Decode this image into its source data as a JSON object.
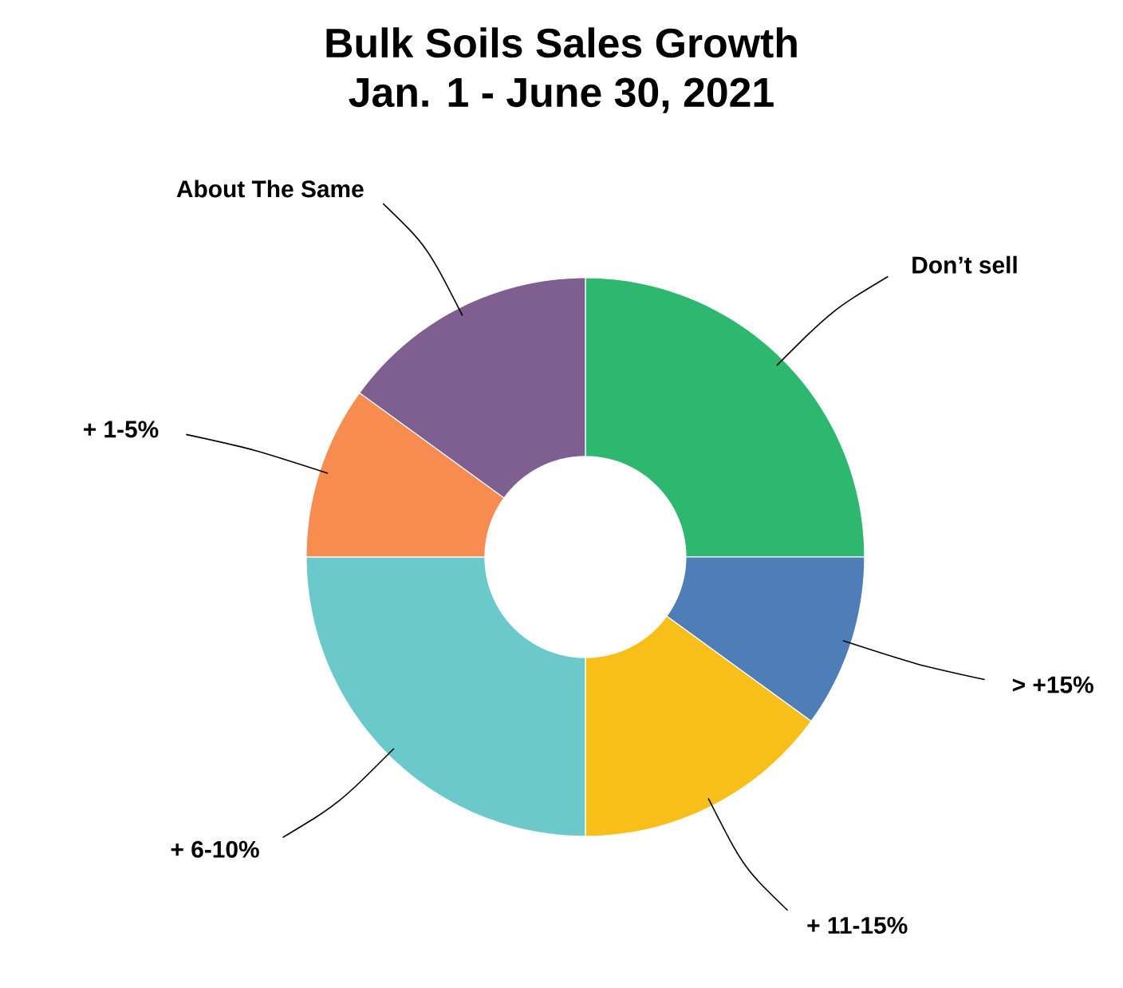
{
  "chart_data": {
    "type": "donut",
    "title": "Bulk Soils Sales Growth",
    "subtitle": "Jan. 1 - June 30, 2021",
    "categories": [
      "Don’t sell",
      "> +15%",
      "+ 11-15%",
      "+ 6-10%",
      "+ 1-5%",
      "About The Same"
    ],
    "values": [
      25,
      10,
      15,
      25,
      10,
      15
    ],
    "colors": [
      "#2eb76e",
      "#4f7db8",
      "#f8be1a",
      "#6bc9cc",
      "#f78b50",
      "#7e5f8f"
    ]
  }
}
